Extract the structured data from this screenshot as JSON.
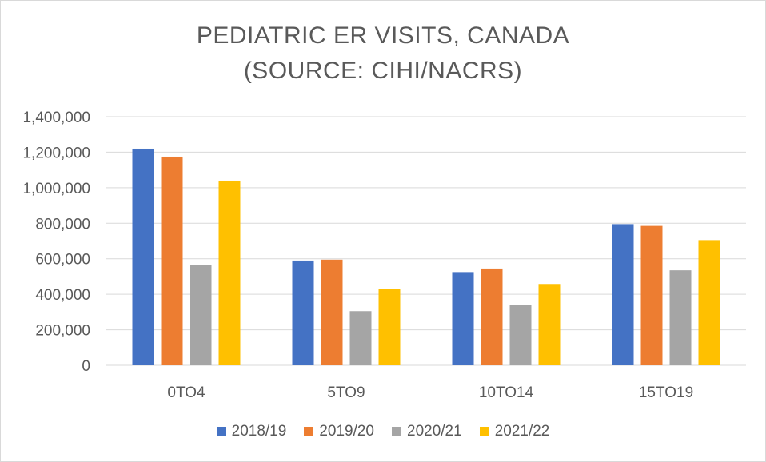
{
  "chart_data": {
    "type": "bar",
    "title_lines": [
      "PEDIATRIC ER VISITS, CANADA",
      "(SOURCE: CIHI/NACRS)"
    ],
    "xlabel": "",
    "ylabel": "",
    "categories": [
      "0TO4",
      "5TO9",
      "10TO14",
      "15TO19"
    ],
    "series": [
      {
        "name": "2018/19",
        "color": "#4472C4",
        "values": [
          1220000,
          590000,
          525000,
          795000
        ]
      },
      {
        "name": "2019/20",
        "color": "#ED7D31",
        "values": [
          1175000,
          595000,
          545000,
          785000
        ]
      },
      {
        "name": "2020/21",
        "color": "#A5A5A5",
        "values": [
          565000,
          305000,
          340000,
          535000
        ]
      },
      {
        "name": "2021/22",
        "color": "#FFC000",
        "values": [
          1040000,
          430000,
          458000,
          705000
        ]
      }
    ],
    "ylim": [
      0,
      1400000
    ],
    "yticks": [
      0,
      200000,
      400000,
      600000,
      800000,
      1000000,
      1200000,
      1400000
    ],
    "ytick_labels": [
      "0",
      "200,000",
      "400,000",
      "600,000",
      "800,000",
      "1,000,000",
      "1,200,000",
      "1,400,000"
    ],
    "grid": true,
    "legend_position": "bottom"
  }
}
